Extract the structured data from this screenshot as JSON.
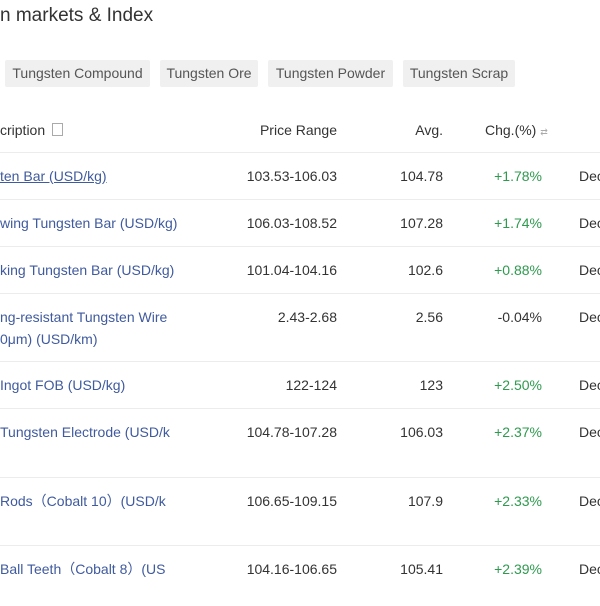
{
  "title": "n markets & Index",
  "tabs": [
    "Tungsten Compound",
    "Tungsten Ore",
    "Tungsten Powder",
    "Tungsten Scrap"
  ],
  "header": {
    "description": "cription",
    "price_range": "Price Range",
    "avg": "Avg.",
    "chg": "Chg.(%)"
  },
  "rows": [
    {
      "desc": "ten Bar (USD/kg)",
      "desc2": "",
      "range": "103.53-106.03",
      "avg": "104.78",
      "chg": "+1.78%",
      "date": "Dec"
    },
    {
      "desc": "wing Tungsten Bar (USD/kg)",
      "desc2": "",
      "range": "106.03-108.52",
      "avg": "107.28",
      "chg": "+1.74%",
      "date": "Dec"
    },
    {
      "desc": "king Tungsten Bar (USD/kg)",
      "desc2": "",
      "range": "101.04-104.16",
      "avg": "102.6",
      "chg": "+0.88%",
      "date": "Dec"
    },
    {
      "desc": "ng-resistant Tungsten Wire",
      "desc2": "0μm) (USD/km)",
      "range": "2.43-2.68",
      "avg": "2.56",
      "chg": "-0.04%",
      "date": "Dec"
    },
    {
      "desc": " Ingot FOB (USD/kg)",
      "desc2": "",
      "range": "122-124",
      "avg": "123",
      "chg": "+2.50%",
      "date": "Dec"
    },
    {
      "desc": "Tungsten Electrode (USD/k",
      "desc2": "",
      "range": "104.78-107.28",
      "avg": "106.03",
      "chg": "+2.37%",
      "date": "Dec"
    },
    {
      "desc": " Rods（Cobalt 10）(USD/k",
      "desc2": "",
      "range": "106.65-109.15",
      "avg": "107.9",
      "chg": "+2.33%",
      "date": "Dec"
    },
    {
      "desc": " Ball Teeth（Cobalt 8）(US",
      "desc2": "",
      "range": "104.16-106.65",
      "avg": "105.41",
      "chg": "+2.39%",
      "date": "Dec"
    }
  ],
  "colors": {
    "link": "#3f5a9e",
    "up": "#2e9a4e"
  }
}
